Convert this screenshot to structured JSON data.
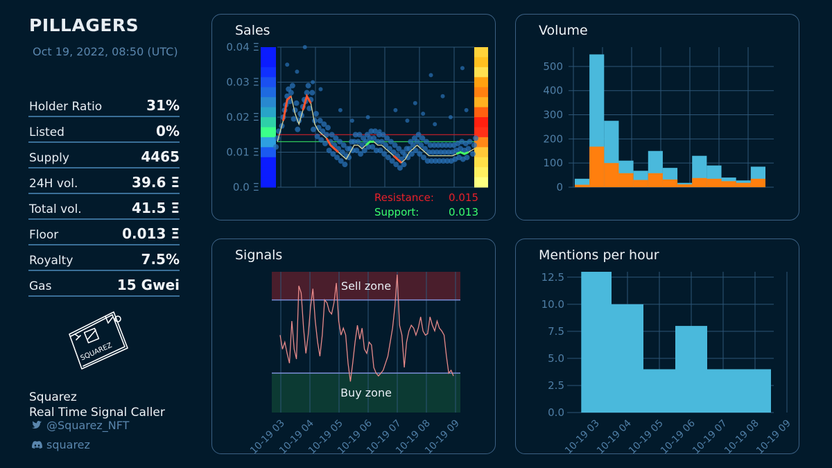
{
  "header": {
    "title": "PILLAGERS",
    "datetime": "Oct 19, 2022, 08:50 (UTC)"
  },
  "stats": [
    {
      "label": "Holder Ratio",
      "value": "31%"
    },
    {
      "label": "Listed",
      "value": "0%"
    },
    {
      "label": "Supply",
      "value": "4465"
    },
    {
      "label": "24H vol.",
      "value": "39.6 Ξ"
    },
    {
      "label": "Total vol.",
      "value": "41.5 Ξ"
    },
    {
      "label": "Floor",
      "value": "0.013 Ξ"
    },
    {
      "label": "Royalty",
      "value": "7.5%"
    },
    {
      "label": "Gas",
      "value": "15 Gwei"
    }
  ],
  "logo": {
    "text": "SQUAREZ",
    "icon": "squarez-logo-icon"
  },
  "footer": {
    "name": "Squarez",
    "tagline": "Real Time Signal Caller",
    "twitter": "@Squarez_NFT",
    "discord": "squarez",
    "twitter_icon": "twitter-icon",
    "discord_icon": "discord-icon"
  },
  "panels": {
    "sales": "Sales",
    "volume": "Volume",
    "signals": "Signals",
    "mentions": "Mentions per hour"
  },
  "colors": {
    "background": "#021a2b",
    "panel_border": "#3c6184",
    "accent_blue": "#4ab9dc",
    "accent_orange": "#ff7f0e",
    "resistance": "#e8202a",
    "support": "#3bff6e"
  },
  "chart_data": [
    {
      "type": "scatter",
      "title": "Sales",
      "y_ticks": [
        "0.0 Ξ",
        "0.01 Ξ",
        "0.02 Ξ",
        "0.03 Ξ",
        "0.04 Ξ"
      ],
      "ylim": [
        0,
        0.04
      ],
      "x": [
        0.0,
        0.03,
        0.05,
        0.07,
        0.09,
        0.11,
        0.13,
        0.15,
        0.17,
        0.19,
        0.21,
        0.23,
        0.25,
        0.27,
        0.29,
        0.31,
        0.33,
        0.35,
        0.37,
        0.39,
        0.41,
        0.43,
        0.45,
        0.47,
        0.49,
        0.51,
        0.53,
        0.55,
        0.57,
        0.59,
        0.61,
        0.63,
        0.65,
        0.67,
        0.69,
        0.71,
        0.73,
        0.75,
        0.77,
        0.79,
        0.81,
        0.83,
        0.85,
        0.87,
        0.89,
        0.91,
        0.93,
        0.95,
        0.97,
        1.0
      ],
      "price_line": [
        0.013,
        0.019,
        0.025,
        0.026,
        0.021,
        0.018,
        0.022,
        0.026,
        0.024,
        0.018,
        0.016,
        0.015,
        0.014,
        0.012,
        0.011,
        0.01,
        0.009,
        0.008,
        0.01,
        0.012,
        0.012,
        0.011,
        0.012,
        0.013,
        0.013,
        0.012,
        0.012,
        0.011,
        0.01,
        0.009,
        0.008,
        0.007,
        0.008,
        0.01,
        0.011,
        0.012,
        0.011,
        0.01,
        0.009,
        0.009,
        0.009,
        0.009,
        0.009,
        0.009,
        0.009,
        0.0095,
        0.01,
        0.0095,
        0.01,
        0.011
      ],
      "outliers": [
        [
          0.05,
          0.035
        ],
        [
          0.1,
          0.033
        ],
        [
          0.14,
          0.04
        ],
        [
          0.18,
          0.03
        ],
        [
          0.22,
          0.028
        ],
        [
          0.32,
          0.022
        ],
        [
          0.38,
          0.019
        ],
        [
          0.46,
          0.02
        ],
        [
          0.52,
          0.016
        ],
        [
          0.6,
          0.022
        ],
        [
          0.66,
          0.019
        ],
        [
          0.7,
          0.024
        ],
        [
          0.74,
          0.021
        ],
        [
          0.78,
          0.032
        ],
        [
          0.8,
          0.018
        ],
        [
          0.84,
          0.026
        ],
        [
          0.88,
          0.02
        ],
        [
          0.94,
          0.034
        ],
        [
          0.96,
          0.022
        ]
      ],
      "resistance": 0.015,
      "support": 0.013,
      "annotations": {
        "resistance_label": "Resistance:",
        "resistance_value": "0.015",
        "support_label": "Support:",
        "support_value": "0.013"
      }
    },
    {
      "type": "bar",
      "title": "Volume",
      "y_ticks": [
        "0",
        "100",
        "200",
        "300",
        "400",
        "500"
      ],
      "ylim": [
        0,
        580
      ],
      "series": [
        {
          "color": "#4ab9dc",
          "values": [
            35,
            550,
            275,
            110,
            68,
            150,
            80,
            18,
            130,
            90,
            40,
            28,
            85
          ]
        },
        {
          "color": "#ff7f0e",
          "values": [
            10,
            168,
            100,
            58,
            30,
            58,
            32,
            12,
            38,
            35,
            25,
            18,
            35
          ]
        }
      ]
    },
    {
      "type": "line",
      "title": "Signals",
      "x_ticks": [
        "10-19 03",
        "10-19 04",
        "10-19 05",
        "10-19 06",
        "10-19 07",
        "10-19 08",
        "10-19 09"
      ],
      "zones": {
        "sell": "Sell zone",
        "buy": "Buy zone"
      },
      "ylim": [
        0,
        1
      ],
      "sell_threshold": 0.8,
      "buy_threshold": 0.28,
      "values": [
        0.55,
        0.45,
        0.5,
        0.42,
        0.35,
        0.65,
        0.45,
        0.38,
        0.9,
        0.85,
        0.6,
        0.42,
        0.55,
        0.75,
        0.88,
        0.65,
        0.5,
        0.4,
        0.55,
        0.8,
        0.78,
        0.72,
        0.7,
        0.78,
        0.92,
        0.65,
        0.55,
        0.6,
        0.55,
        0.35,
        0.22,
        0.35,
        0.5,
        0.62,
        0.52,
        0.6,
        0.45,
        0.42,
        0.5,
        0.48,
        0.32,
        0.28,
        0.26,
        0.28,
        0.3,
        0.35,
        0.4,
        0.5,
        0.6,
        0.75,
        0.98,
        0.62,
        0.55,
        0.32,
        0.5,
        0.58,
        0.62,
        0.6,
        0.55,
        0.6,
        0.68,
        0.58,
        0.55,
        0.56,
        0.68,
        0.62,
        0.58,
        0.65,
        0.6,
        0.58,
        0.55,
        0.4,
        0.28,
        0.3,
        0.26
      ]
    },
    {
      "type": "bar",
      "title": "Mentions per hour",
      "x_ticks": [
        "10-19 03",
        "10-19 04",
        "10-19 05",
        "10-19 06",
        "10-19 07",
        "10-19 08",
        "10-19 09"
      ],
      "y_ticks": [
        "0.0",
        "2.5",
        "5.0",
        "7.5",
        "10.0",
        "12.5"
      ],
      "ylim": [
        0,
        13
      ],
      "bins": [
        [
          2.55,
          3.5,
          13
        ],
        [
          3.5,
          4.5,
          10
        ],
        [
          4.5,
          5.5,
          4
        ],
        [
          5.5,
          6.5,
          8
        ],
        [
          6.5,
          8.5,
          4
        ]
      ]
    }
  ]
}
